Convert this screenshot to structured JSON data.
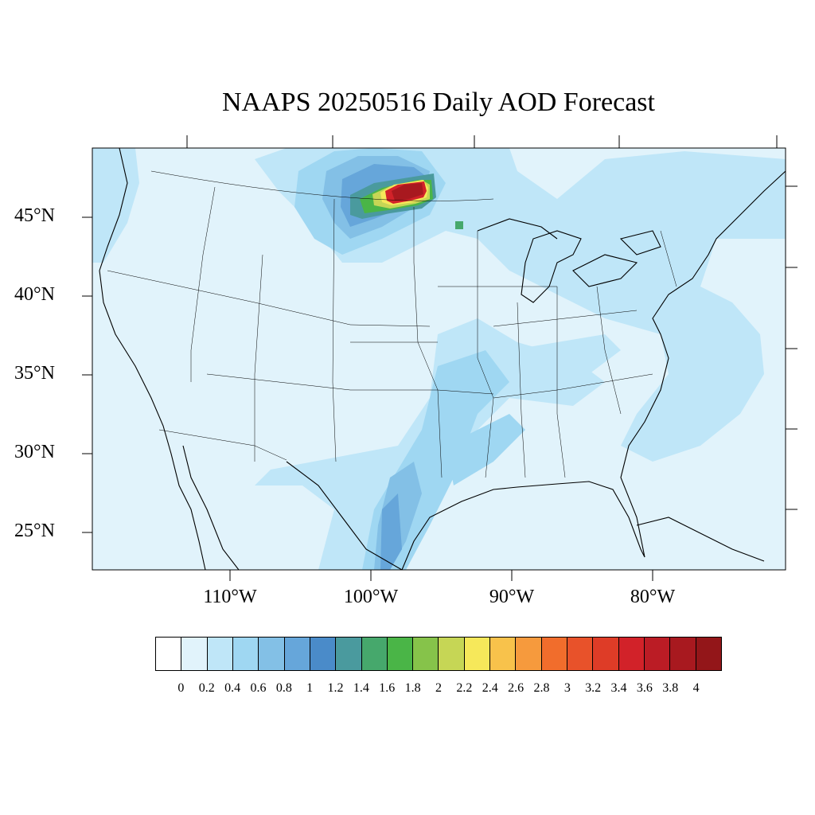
{
  "title": "NAAPS 20250516 Daily AOD Forecast",
  "lat_labels": [
    "45°N",
    "40°N",
    "35°N",
    "30°N",
    "25°N"
  ],
  "lon_labels": [
    "110°W",
    "100°W",
    "90°W",
    "80°W"
  ],
  "colorbar": {
    "ticks": [
      "0",
      "0.2",
      "0.4",
      "0.6",
      "0.8",
      "1",
      "1.2",
      "1.4",
      "1.6",
      "1.8",
      "2",
      "2.2",
      "2.4",
      "2.6",
      "2.8",
      "3",
      "3.2",
      "3.4",
      "3.6",
      "3.8",
      "4"
    ],
    "colors": [
      "#ffffff",
      "#e1f3fb",
      "#bfe6f8",
      "#9fd7f2",
      "#83c0e6",
      "#66a6da",
      "#4a8bc9",
      "#4a9a9e",
      "#46a86c",
      "#4ab547",
      "#86c34a",
      "#c6d655",
      "#f6e85a",
      "#f8c24b",
      "#f69a3d",
      "#f16d2c",
      "#e8522a",
      "#de3c27",
      "#d22229",
      "#bb1c25",
      "#a8191f",
      "#931619"
    ]
  },
  "colors": {
    "background_aod": "#e1f3fb",
    "coast_lines": "#000000",
    "plume_max": "#a8191f"
  }
}
